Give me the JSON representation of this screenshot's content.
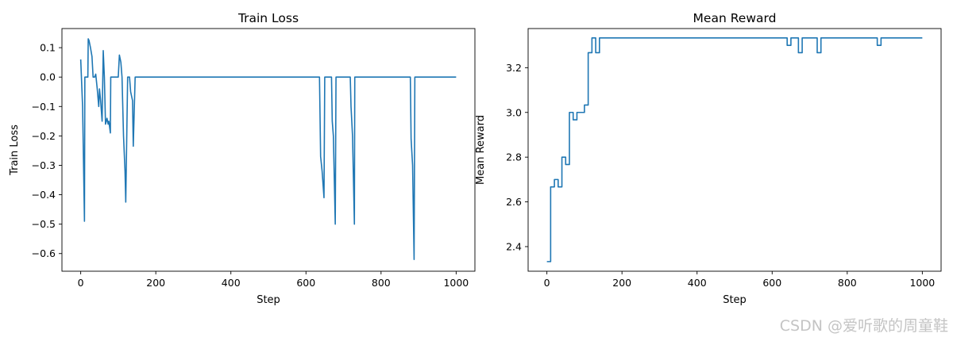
{
  "chart_data": [
    {
      "type": "line",
      "title": "Train Loss",
      "xlabel": "Step",
      "ylabel": "Train Loss",
      "xlim": [
        -50,
        1050
      ],
      "ylim": [
        -0.66,
        0.165
      ],
      "xticks": [
        0,
        200,
        400,
        600,
        800,
        1000
      ],
      "yticks": [
        -0.6,
        -0.5,
        -0.4,
        -0.3,
        -0.2,
        -0.1,
        0.0,
        0.1
      ],
      "ytick_labels": [
        "−0.6",
        "−0.5",
        "−0.4",
        "−0.3",
        "−0.2",
        "−0.1",
        "0.0",
        "0.1"
      ],
      "grid": false,
      "color": "#1f77b4",
      "series": [
        {
          "x": [
            0,
            5,
            10,
            11,
            15,
            19,
            20,
            22,
            26,
            30,
            33,
            37,
            40,
            44,
            48,
            50,
            53,
            57,
            60,
            63,
            66,
            70,
            73,
            75,
            79,
            80,
            85,
            90,
            95,
            100,
            103,
            107,
            110,
            114,
            118,
            120,
            125,
            130,
            133,
            138,
            140,
            145,
            150,
            200,
            400,
            600,
            636,
            639,
            643,
            648,
            650,
            655,
            660,
            668,
            670,
            673,
            678,
            680,
            685,
            690,
            700,
            710,
            718,
            720,
            724,
            729,
            730,
            735,
            740,
            800,
            878,
            880,
            884,
            888,
            890,
            895,
            900,
            1000
          ],
          "y": [
            0.06,
            -0.1,
            -0.49,
            0.0,
            0.0,
            0.0,
            0.13,
            0.125,
            0.1,
            0.07,
            0.0,
            0.0,
            0.01,
            -0.04,
            -0.1,
            -0.04,
            -0.08,
            -0.15,
            0.09,
            0.0,
            -0.16,
            -0.14,
            -0.16,
            -0.15,
            -0.19,
            0.0,
            0.0,
            0.0,
            0.0,
            0.0,
            0.075,
            0.05,
            0.0,
            -0.2,
            -0.32,
            -0.425,
            0.0,
            0.0,
            -0.05,
            -0.08,
            -0.235,
            0.0,
            0.0,
            0.0,
            0.0,
            0.0,
            0.0,
            -0.27,
            -0.32,
            -0.41,
            0.0,
            0.0,
            0.0,
            0.0,
            -0.15,
            -0.2,
            -0.5,
            0.0,
            0.0,
            0.0,
            0.0,
            0.0,
            0.0,
            -0.1,
            -0.2,
            -0.5,
            0.0,
            0.0,
            0.0,
            0.0,
            0.0,
            -0.21,
            -0.3,
            -0.62,
            0.0,
            0.0,
            0.0,
            0.0
          ]
        }
      ]
    },
    {
      "type": "line",
      "title": "Mean Reward",
      "xlabel": "Step",
      "ylabel": "Mean Reward",
      "xlim": [
        -50,
        1050
      ],
      "ylim": [
        2.29,
        3.375
      ],
      "xticks": [
        0,
        200,
        400,
        600,
        800,
        1000
      ],
      "yticks": [
        2.4,
        2.6,
        2.8,
        3.0,
        3.2
      ],
      "ytick_labels": [
        "2.4",
        "2.6",
        "2.8",
        "3.0",
        "3.2"
      ],
      "grid": false,
      "color": "#1f77b4",
      "series": [
        {
          "x": [
            0,
            10,
            10,
            20,
            20,
            30,
            30,
            40,
            40,
            50,
            50,
            60,
            60,
            70,
            70,
            80,
            80,
            100,
            100,
            110,
            110,
            120,
            120,
            130,
            130,
            140,
            140,
            640,
            640,
            650,
            650,
            670,
            670,
            680,
            680,
            720,
            720,
            730,
            730,
            880,
            880,
            890,
            890,
            1000
          ],
          "y": [
            2.333,
            2.333,
            2.667,
            2.667,
            2.7,
            2.7,
            2.667,
            2.667,
            2.8,
            2.8,
            2.767,
            2.767,
            3.0,
            3.0,
            2.967,
            2.967,
            3.0,
            3.0,
            3.033,
            3.033,
            3.267,
            3.267,
            3.333,
            3.333,
            3.267,
            3.267,
            3.333,
            3.333,
            3.3,
            3.3,
            3.333,
            3.333,
            3.267,
            3.267,
            3.333,
            3.333,
            3.267,
            3.267,
            3.333,
            3.333,
            3.3,
            3.3,
            3.333,
            3.333
          ]
        }
      ]
    }
  ],
  "watermark": "CSDN @爱听歌的周童鞋"
}
